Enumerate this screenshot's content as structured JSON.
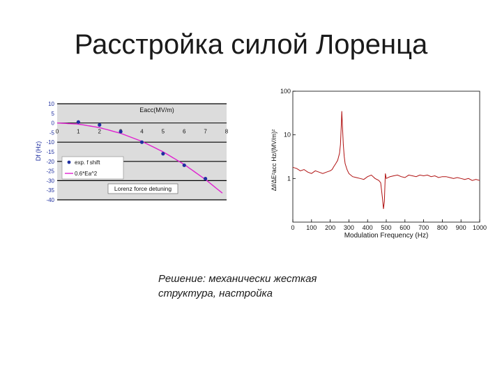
{
  "slide": {
    "title": "Расстройка силой Лоренца",
    "caption_line1": "Решение: механически жесткая",
    "caption_line2": "структура, настройка"
  },
  "chart_data": [
    {
      "type": "scatter",
      "title": "",
      "xlabel": "Eacc(MV/m)",
      "ylabel": "Df (Hz)",
      "xlim": [
        0,
        8
      ],
      "ylim": [
        -40,
        10
      ],
      "x_ticks": [
        "0",
        "1",
        "2",
        "3",
        "4",
        "5",
        "6",
        "7",
        "8"
      ],
      "y_ticks": [
        "10",
        "5",
        "0",
        "-5",
        "-10",
        "-15",
        "-20",
        "-25",
        "-30",
        "-35",
        "-40"
      ],
      "grid": true,
      "legend_position": "bottom-left",
      "annotation": "Lorenz force detuning",
      "series": [
        {
          "name": "exp. f shift",
          "kind": "points",
          "color": "#1f2fa0",
          "x": [
            1,
            2,
            3,
            4,
            5,
            6,
            7
          ],
          "y": [
            0.5,
            -1,
            -4.5,
            -10,
            -16,
            -22,
            -29
          ]
        },
        {
          "name": "0.6*Ea^2",
          "kind": "line",
          "color": "#e020d0",
          "x": [
            0,
            1,
            2,
            3,
            4,
            5,
            6,
            7,
            7.8
          ],
          "y": [
            0,
            -0.6,
            -2.4,
            -5.4,
            -9.6,
            -15,
            -21.6,
            -29.4,
            -36.5
          ]
        }
      ]
    },
    {
      "type": "line",
      "title": "",
      "xlabel": "Modulation Frequency (Hz)",
      "ylabel": "Δf/ΔE²acc Hz/(MV/m)²",
      "xlim": [
        0,
        1000
      ],
      "ylim": [
        0.1,
        100
      ],
      "yscale": "log",
      "x_ticks": [
        "0",
        "100",
        "200",
        "300",
        "400",
        "500",
        "600",
        "700",
        "800",
        "900",
        "1000"
      ],
      "y_ticks": [
        "100",
        "10",
        "1"
      ],
      "grid": false,
      "series": [
        {
          "name": "",
          "color": "#b01010",
          "x": [
            0,
            20,
            40,
            60,
            80,
            100,
            120,
            140,
            160,
            180,
            200,
            210,
            220,
            230,
            240,
            250,
            255,
            260,
            262,
            265,
            270,
            275,
            280,
            290,
            300,
            320,
            340,
            360,
            380,
            400,
            420,
            440,
            460,
            470,
            480,
            485,
            490,
            495,
            500,
            520,
            540,
            560,
            580,
            600,
            620,
            640,
            660,
            680,
            700,
            720,
            740,
            760,
            780,
            800,
            820,
            840,
            860,
            880,
            900,
            920,
            940,
            960,
            980,
            1000
          ],
          "y": [
            1.8,
            1.7,
            1.5,
            1.6,
            1.4,
            1.3,
            1.5,
            1.4,
            1.3,
            1.4,
            1.5,
            1.6,
            1.9,
            2.2,
            2.6,
            3.8,
            6,
            20,
            35,
            18,
            6,
            3.2,
            2.2,
            1.6,
            1.3,
            1.1,
            1.05,
            1.0,
            0.95,
            1.1,
            1.2,
            1.0,
            0.9,
            0.8,
            0.35,
            0.2,
            0.3,
            1.3,
            1.0,
            1.1,
            1.15,
            1.2,
            1.1,
            1.05,
            1.2,
            1.15,
            1.1,
            1.2,
            1.15,
            1.2,
            1.1,
            1.15,
            1.05,
            1.1,
            1.1,
            1.05,
            1.0,
            1.05,
            1.0,
            0.95,
            1.0,
            0.9,
            0.95,
            0.9
          ]
        }
      ]
    }
  ]
}
